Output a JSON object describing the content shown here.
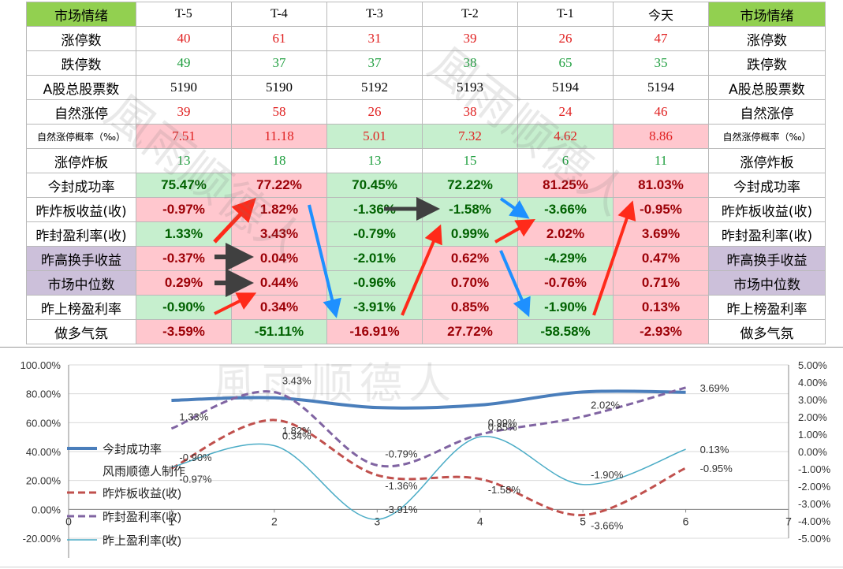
{
  "table": {
    "header": [
      "市场情绪",
      "T-5",
      "T-4",
      "T-3",
      "T-2",
      "T-1",
      "今天",
      "市场情绪"
    ],
    "rows": [
      {
        "label": "涨停数",
        "values": [
          "40",
          "61",
          "31",
          "39",
          "26",
          "47"
        ],
        "type": "int",
        "color": "red"
      },
      {
        "label": "跌停数",
        "values": [
          "49",
          "37",
          "37",
          "38",
          "65",
          "35"
        ],
        "type": "int",
        "color": "green"
      },
      {
        "label": "A股总股票数",
        "values": [
          "5190",
          "5190",
          "5192",
          "5193",
          "5194",
          "5194"
        ],
        "type": "int",
        "color": "black"
      },
      {
        "label": "自然涨停",
        "values": [
          "39",
          "58",
          "26",
          "38",
          "24",
          "46"
        ],
        "type": "int",
        "color": "red"
      },
      {
        "label": "自然涨停概率（‰）",
        "values": [
          "7.51",
          "11.18",
          "5.01",
          "7.32",
          "4.62",
          "8.86"
        ],
        "type": "int",
        "color": "red",
        "small": true,
        "bg": [
          "pink",
          "pink",
          "green",
          "green",
          "green",
          "pink"
        ]
      },
      {
        "label": "涨停炸板",
        "values": [
          "13",
          "18",
          "13",
          "15",
          "6",
          "11"
        ],
        "type": "int",
        "color": "green"
      },
      {
        "label": "今封成功率",
        "values": [
          "75.47%",
          "77.22%",
          "70.45%",
          "72.22%",
          "81.25%",
          "81.03%"
        ],
        "type": "pct",
        "bg": [
          "green",
          "pink",
          "green",
          "green",
          "pink",
          "pink"
        ]
      },
      {
        "label": "昨炸板收益(收)",
        "values": [
          "-0.97%",
          "1.82%",
          "-1.36%",
          "-1.58%",
          "-3.66%",
          "-0.95%"
        ],
        "type": "pct",
        "bg": [
          "pink",
          "pink",
          "green",
          "green",
          "green",
          "pink"
        ]
      },
      {
        "label": "昨封盈利率(收)",
        "values": [
          "1.33%",
          "3.43%",
          "-0.79%",
          "0.99%",
          "2.02%",
          "3.69%"
        ],
        "type": "pct",
        "bg": [
          "green",
          "pink",
          "green",
          "green",
          "pink",
          "pink"
        ]
      },
      {
        "label": "昨高换手收益",
        "values": [
          "-0.37%",
          "0.04%",
          "-2.01%",
          "0.62%",
          "-4.29%",
          "0.47%"
        ],
        "type": "pct",
        "bg": [
          "pink",
          "pink",
          "green",
          "pink",
          "green",
          "pink"
        ],
        "labelbg": "purple"
      },
      {
        "label": "市场中位数",
        "values": [
          "0.29%",
          "0.44%",
          "-0.96%",
          "0.70%",
          "-0.76%",
          "0.71%"
        ],
        "type": "pct",
        "bg": [
          "pink",
          "pink",
          "green",
          "pink",
          "pink",
          "pink"
        ],
        "labelbg": "purple"
      },
      {
        "label": "昨上榜盈利率",
        "values": [
          "-0.90%",
          "0.34%",
          "-3.91%",
          "0.85%",
          "-1.90%",
          "0.13%"
        ],
        "type": "pct",
        "bg": [
          "green",
          "pink",
          "green",
          "pink",
          "green",
          "pink"
        ]
      },
      {
        "label": "做多气氛",
        "values": [
          "-3.59%",
          "-51.11%",
          "-16.91%",
          "27.72%",
          "-58.58%",
          "-2.93%"
        ],
        "type": "pct",
        "bg": [
          "pink",
          "green",
          "pink",
          "pink",
          "green",
          "pink"
        ]
      }
    ]
  },
  "watermark": "風雨顺德人",
  "chart_data": {
    "type": "line",
    "x": [
      1,
      2,
      3,
      4,
      5,
      6
    ],
    "xlim": [
      0,
      7
    ],
    "x_ticks": [
      "0",
      "1",
      "2",
      "3",
      "4",
      "5",
      "6",
      "7"
    ],
    "y_left_ticks": [
      "100.00%",
      "80.00%",
      "60.00%",
      "40.00%",
      "20.00%",
      "0.00%",
      "-20.00%"
    ],
    "y_left_lim": [
      -20,
      100
    ],
    "y_right_ticks": [
      "5.00%",
      "4.00%",
      "3.00%",
      "2.00%",
      "1.00%",
      "0.00%",
      "-1.00%",
      "-2.00%",
      "-3.00%",
      "-4.00%",
      "-5.00%"
    ],
    "y_right_lim": [
      -5,
      5
    ],
    "series": [
      {
        "name": "今封成功率",
        "axis": "left",
        "values": [
          75.47,
          77.22,
          70.45,
          72.22,
          81.25,
          81.03
        ],
        "color": "#4a7ebb",
        "style": "solid",
        "width": 4
      },
      {
        "name": "昨炸板收益(收)",
        "axis": "right",
        "values": [
          -0.97,
          1.82,
          -1.36,
          -1.58,
          -3.66,
          -0.95
        ],
        "labels": [
          "-0.97%",
          "1.82%",
          "-1.36%",
          "-1.58%",
          "-3.66%",
          "-0.95%"
        ],
        "color": "#c0504d",
        "style": "dash",
        "width": 3
      },
      {
        "name": "昨封盈利率(收)",
        "axis": "right",
        "values": [
          1.33,
          3.43,
          -0.79,
          0.99,
          2.02,
          3.69
        ],
        "labels": [
          "1.33%",
          "3.43%",
          "-0.79%",
          "0.99%",
          "2.02%",
          "3.69%"
        ],
        "color": "#8064a2",
        "style": "dash",
        "width": 3
      },
      {
        "name": "昨上盈利率(收)",
        "axis": "right",
        "values": [
          -0.9,
          0.34,
          -3.91,
          0.85,
          -1.9,
          0.13
        ],
        "labels": [
          "-0.90%",
          "0.34%",
          "-3.91%",
          "0.85%",
          "-1.90%",
          "0.13%"
        ],
        "color": "#4bacc6",
        "style": "solid",
        "width": 1.5
      }
    ],
    "legend_note": "风雨顺德人制作",
    "legend_placement": "left"
  },
  "arrows": {
    "red": "#ff2a1a",
    "blue": "#1e90ff",
    "gray": "#404040"
  }
}
